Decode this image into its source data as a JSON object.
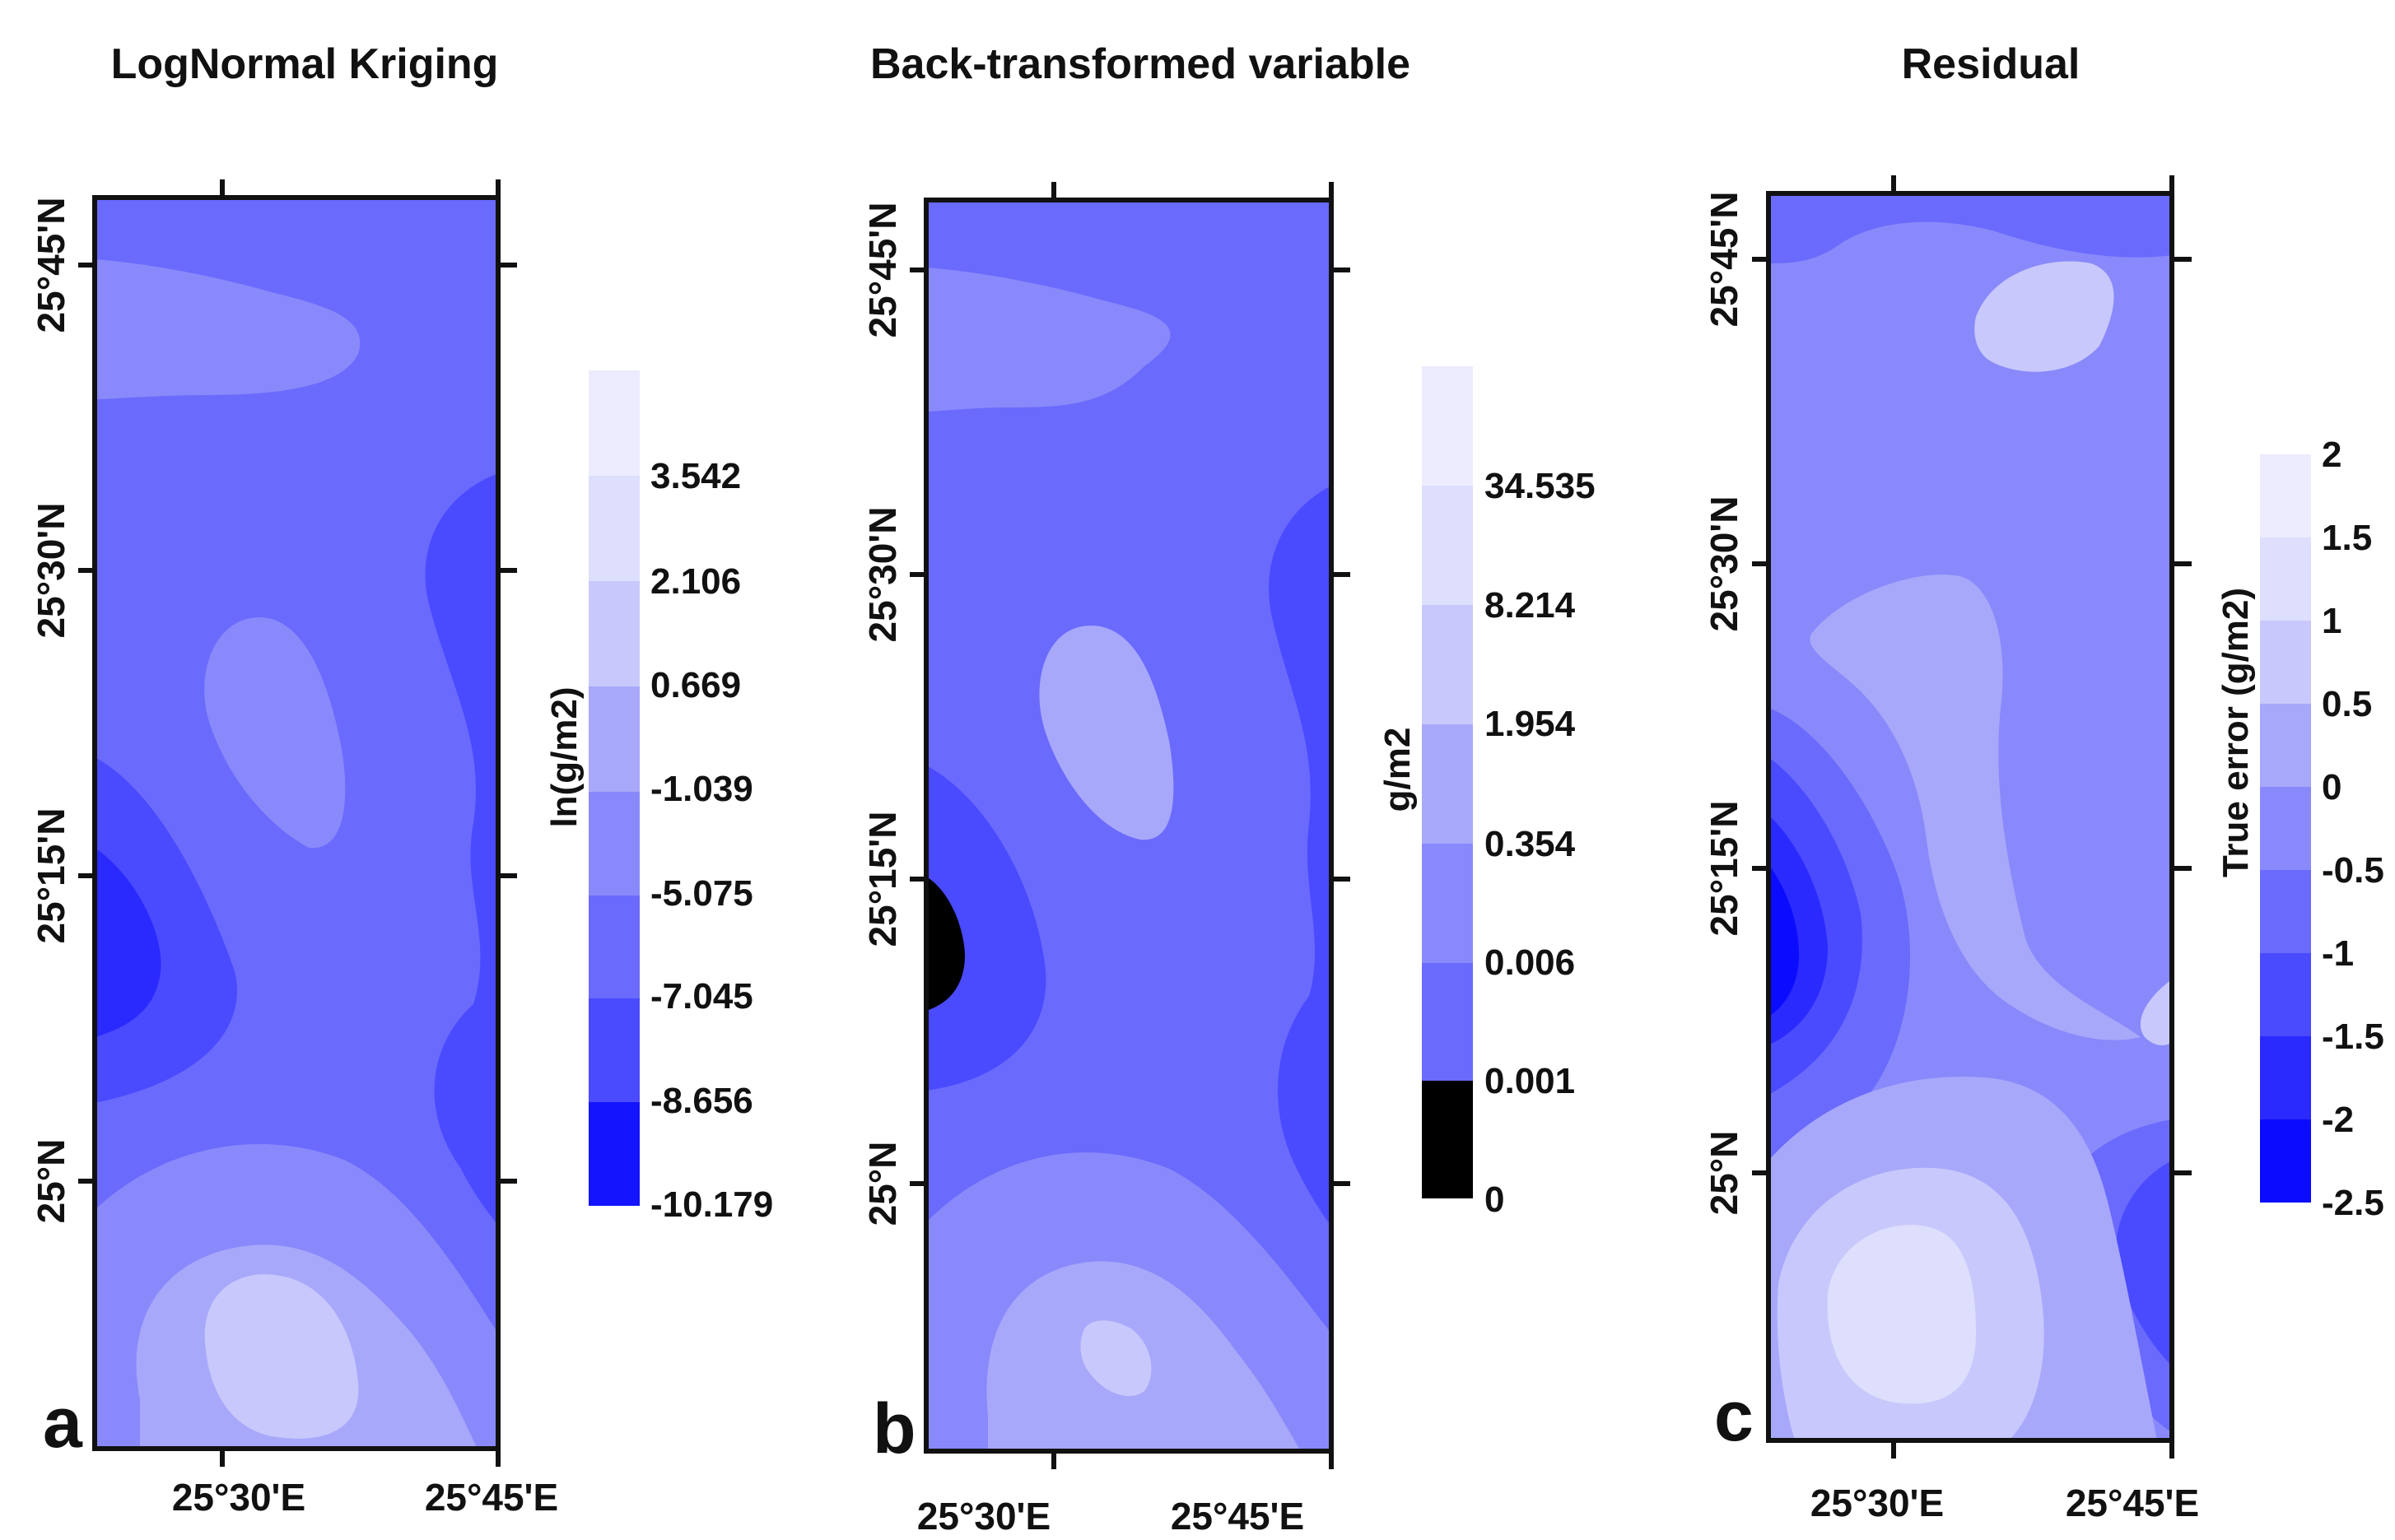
{
  "panels": [
    {
      "letter": "a",
      "title": "LogNormal Kriging",
      "lat_ticks": [
        "25°45'N",
        "25°30'N",
        "25°15'N",
        "25°N"
      ],
      "lon_ticks": [
        "25°30'E",
        "25°45'E"
      ],
      "colorbar_label": "ln(g/m2)",
      "colorbar_ticks": [
        "3.542",
        "2.106",
        "0.669",
        "-1.039",
        "-5.075",
        "-7.045",
        "-8.656",
        "-10.179"
      ]
    },
    {
      "letter": "b",
      "title": "Back-transformed variable",
      "lat_ticks": [
        "25°45'N",
        "25°30'N",
        "25°15'N",
        "25°N"
      ],
      "lon_ticks": [
        "25°30'E",
        "25°45'E"
      ],
      "colorbar_label": "g/m2",
      "colorbar_ticks": [
        "34.535",
        "8.214",
        "1.954",
        "0.354",
        "0.006",
        "0.001",
        "0"
      ]
    },
    {
      "letter": "c",
      "title": "Residual",
      "lat_ticks": [
        "25°45'N",
        "25°30'N",
        "25°15'N",
        "25°N"
      ],
      "lon_ticks": [
        "25°30'E",
        "25°45'E"
      ],
      "colorbar_label": "True error (g/m2)",
      "colorbar_ticks": [
        "2",
        "1.5",
        "1",
        "0.5",
        "0",
        "-0.5",
        "-1",
        "-1.5",
        "-2",
        "-2.5"
      ]
    }
  ],
  "colors": {
    "c0": "#0b0bff",
    "c1": "#2a2aff",
    "c2": "#4a4aff",
    "c3": "#6a6afc",
    "c4": "#8989fb",
    "c5": "#a8a8fb",
    "c6": "#c8c8fc",
    "c7": "#dedefd",
    "c8": "#ececfe",
    "nodata": "#000000"
  }
}
